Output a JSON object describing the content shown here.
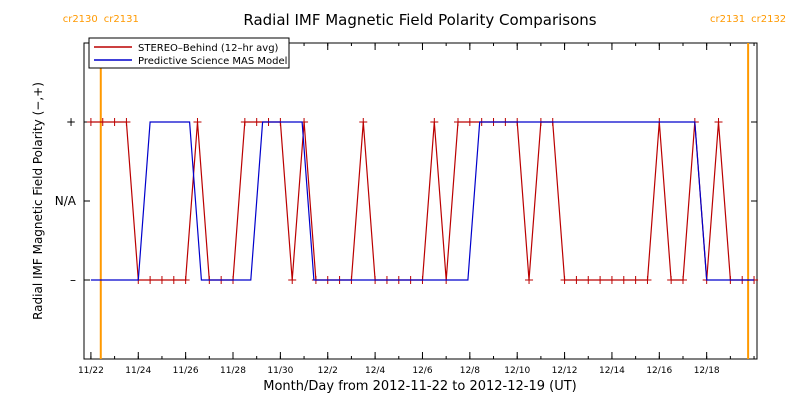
{
  "chart_data": {
    "type": "line",
    "title": "Radial IMF Magnetic Field Polarity Comparisons",
    "xlabel": "Month/Day from 2012-11-22 to 2012-12-19 (UT)",
    "ylabel": "Radial IMF Magnetic Field Polarity (−,+)",
    "y_categories": [
      {
        "value": 1,
        "label": "+"
      },
      {
        "value": 0,
        "label": "N/A"
      },
      {
        "value": -1,
        "label": "–"
      }
    ],
    "ylim": [
      -2,
      2
    ],
    "xlim": [
      "2012-11-21T17:00",
      "2012-12-20T03:00"
    ],
    "x_ticks": [
      "11/22",
      "11/24",
      "11/26",
      "11/28",
      "11/30",
      "12/2",
      "12/4",
      "12/6",
      "12/8",
      "12/10",
      "12/12",
      "12/14",
      "12/16",
      "12/18"
    ],
    "x_tick_dates": [
      "2012-11-22",
      "2012-11-24",
      "2012-11-26",
      "2012-11-28",
      "2012-11-30",
      "2012-12-02",
      "2012-12-04",
      "2012-12-06",
      "2012-12-08",
      "2012-12-10",
      "2012-12-12",
      "2012-12-14",
      "2012-12-16",
      "2012-12-18"
    ],
    "carrington_markers": [
      {
        "date": "2012-11-22T10:00",
        "left_label": "cr2130",
        "right_label": "cr2131"
      },
      {
        "date": "2012-12-19T18:00",
        "left_label": "cr2131",
        "right_label": "cr2132"
      }
    ],
    "legend_position": "top-left",
    "colors": {
      "stereo": "#bb0000",
      "mas": "#0000cc",
      "carrington": "#ff9900"
    },
    "series": [
      {
        "name": "STEREO–Behind (12–hr avg)",
        "color": "#bb0000",
        "marker": "+",
        "points": [
          [
            "2012-11-22T00:00",
            1
          ],
          [
            "2012-11-22T12:00",
            1
          ],
          [
            "2012-11-23T00:00",
            1
          ],
          [
            "2012-11-23T12:00",
            1
          ],
          [
            "2012-11-24T00:00",
            -1
          ],
          [
            "2012-11-24T12:00",
            -1
          ],
          [
            "2012-11-25T00:00",
            -1
          ],
          [
            "2012-11-25T12:00",
            -1
          ],
          [
            "2012-11-26T00:00",
            -1
          ],
          [
            "2012-11-26T12:00",
            1
          ],
          [
            "2012-11-27T00:00",
            -1
          ],
          [
            "2012-11-27T12:00",
            -1
          ],
          [
            "2012-11-28T00:00",
            -1
          ],
          [
            "2012-11-28T12:00",
            1
          ],
          [
            "2012-11-29T00:00",
            1
          ],
          [
            "2012-11-29T12:00",
            1
          ],
          [
            "2012-11-30T00:00",
            1
          ],
          [
            "2012-11-30T12:00",
            -1
          ],
          [
            "2012-12-01T00:00",
            1
          ],
          [
            "2012-12-01T12:00",
            -1
          ],
          [
            "2012-12-02T00:00",
            -1
          ],
          [
            "2012-12-02T12:00",
            -1
          ],
          [
            "2012-12-03T00:00",
            -1
          ],
          [
            "2012-12-03T12:00",
            1
          ],
          [
            "2012-12-04T00:00",
            -1
          ],
          [
            "2012-12-04T12:00",
            -1
          ],
          [
            "2012-12-05T00:00",
            -1
          ],
          [
            "2012-12-05T12:00",
            -1
          ],
          [
            "2012-12-06T00:00",
            -1
          ],
          [
            "2012-12-06T12:00",
            1
          ],
          [
            "2012-12-07T00:00",
            -1
          ],
          [
            "2012-12-07T12:00",
            1
          ],
          [
            "2012-12-08T00:00",
            1
          ],
          [
            "2012-12-08T12:00",
            1
          ],
          [
            "2012-12-09T00:00",
            1
          ],
          [
            "2012-12-09T12:00",
            1
          ],
          [
            "2012-12-10T00:00",
            1
          ],
          [
            "2012-12-10T12:00",
            -1
          ],
          [
            "2012-12-11T00:00",
            1
          ],
          [
            "2012-12-11T12:00",
            1
          ],
          [
            "2012-12-12T00:00",
            -1
          ],
          [
            "2012-12-12T12:00",
            -1
          ],
          [
            "2012-12-13T00:00",
            -1
          ],
          [
            "2012-12-13T12:00",
            -1
          ],
          [
            "2012-12-14T00:00",
            -1
          ],
          [
            "2012-12-14T12:00",
            -1
          ],
          [
            "2012-12-15T00:00",
            -1
          ],
          [
            "2012-12-15T12:00",
            -1
          ],
          [
            "2012-12-16T00:00",
            1
          ],
          [
            "2012-12-16T12:00",
            -1
          ],
          [
            "2012-12-17T00:00",
            -1
          ],
          [
            "2012-12-17T12:00",
            1
          ],
          [
            "2012-12-18T00:00",
            -1
          ],
          [
            "2012-12-18T12:00",
            1
          ],
          [
            "2012-12-19T00:00",
            -1
          ],
          [
            "2012-12-19T12:00",
            -1
          ],
          [
            "2012-12-20T00:00",
            -1
          ]
        ]
      },
      {
        "name": "Predictive Science MAS Model",
        "color": "#0000cc",
        "points": [
          [
            "2012-11-22T00:00",
            -1
          ],
          [
            "2012-11-24T00:00",
            -1
          ],
          [
            "2012-11-24T12:00",
            1
          ],
          [
            "2012-11-26T04:00",
            1
          ],
          [
            "2012-11-26T16:00",
            -1
          ],
          [
            "2012-11-28T18:00",
            -1
          ],
          [
            "2012-11-29T06:00",
            1
          ],
          [
            "2012-11-30T22:00",
            1
          ],
          [
            "2012-12-01T10:00",
            -1
          ],
          [
            "2012-12-07T22:00",
            -1
          ],
          [
            "2012-12-08T10:00",
            1
          ],
          [
            "2012-12-17T12:00",
            1
          ],
          [
            "2012-12-18T00:00",
            -1
          ],
          [
            "2012-12-20T00:00",
            -1
          ]
        ]
      }
    ]
  }
}
